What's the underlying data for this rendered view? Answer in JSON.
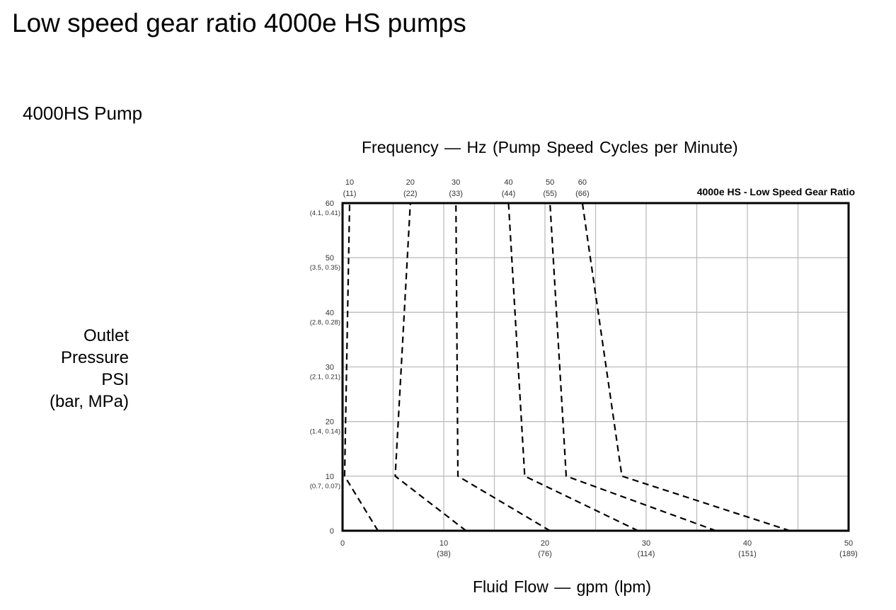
{
  "page": {
    "title": "Low speed gear ratio 4000e HS pumps",
    "subtitle": "4000HS Pump",
    "frequency_title": "Frequency — Hz (Pump Speed Cycles per Minute)",
    "ylabel_lines": [
      "Outlet",
      "Pressure",
      "PSI",
      "(bar, MPa)"
    ],
    "xlabel": "Fluid Flow — gpm (lpm)"
  },
  "chart_data": {
    "type": "line",
    "title": "4000e HS - Low Speed Gear Ratio",
    "xlim": [
      0,
      50
    ],
    "ylim": [
      0,
      60
    ],
    "grid": true,
    "line_style": "dashed",
    "x_ticks": [
      {
        "value": 0,
        "label": "0",
        "sub": ""
      },
      {
        "value": 10,
        "label": "10",
        "sub": "(38)"
      },
      {
        "value": 20,
        "label": "20",
        "sub": "(76)"
      },
      {
        "value": 30,
        "label": "30",
        "sub": "(114)"
      },
      {
        "value": 40,
        "label": "40",
        "sub": "(151)"
      },
      {
        "value": 50,
        "label": "50",
        "sub": "(189)"
      }
    ],
    "y_ticks": [
      {
        "value": 0,
        "label": "0",
        "sub": ""
      },
      {
        "value": 10,
        "label": "10",
        "sub": "(0.7, 0.07)"
      },
      {
        "value": 20,
        "label": "20",
        "sub": "(1.4, 0.14)"
      },
      {
        "value": 30,
        "label": "30",
        "sub": "(2.1, 0.21)"
      },
      {
        "value": 40,
        "label": "40",
        "sub": "(2.8, 0.28)"
      },
      {
        "value": 50,
        "label": "50",
        "sub": "(3.5, 0.35)"
      },
      {
        "value": 60,
        "label": "60",
        "sub": "(4.1, 0.41)"
      }
    ],
    "top_labels": [
      {
        "label": "10",
        "sub": "(11)"
      },
      {
        "label": "20",
        "sub": "(22)"
      },
      {
        "label": "30",
        "sub": "(33)"
      },
      {
        "label": "40",
        "sub": "(44)"
      },
      {
        "label": "50",
        "sub": "(55)"
      },
      {
        "label": "60",
        "sub": "(66)"
      }
    ],
    "x_gridlines": [
      0,
      5,
      10,
      15,
      20,
      25,
      30,
      35,
      40,
      45,
      50
    ],
    "y_gridlines": [
      0,
      10,
      20,
      30,
      40,
      50,
      60
    ],
    "series": [
      {
        "points": [
          [
            3.5,
            0
          ],
          [
            0.2,
            10
          ],
          [
            0.7,
            60
          ]
        ]
      },
      {
        "points": [
          [
            12.2,
            0
          ],
          [
            5.2,
            10
          ],
          [
            6.7,
            60
          ]
        ]
      },
      {
        "points": [
          [
            20.5,
            0
          ],
          [
            11.4,
            10
          ],
          [
            11.2,
            60
          ]
        ]
      },
      {
        "points": [
          [
            29.2,
            0
          ],
          [
            18.0,
            10
          ],
          [
            16.4,
            60
          ]
        ]
      },
      {
        "points": [
          [
            36.9,
            0
          ],
          [
            22.1,
            10
          ],
          [
            20.5,
            60
          ]
        ]
      },
      {
        "points": [
          [
            44.2,
            0
          ],
          [
            27.6,
            10
          ],
          [
            23.7,
            60
          ]
        ]
      }
    ]
  }
}
